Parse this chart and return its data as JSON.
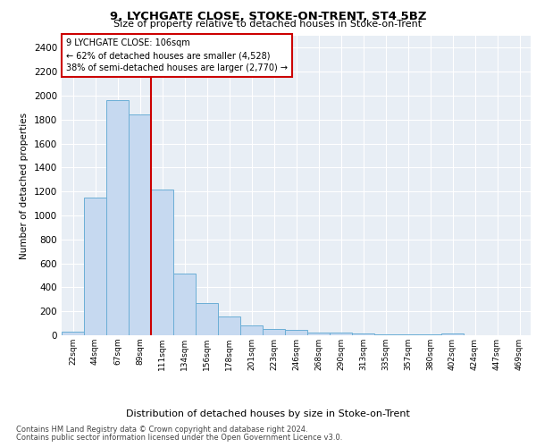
{
  "title1": "9, LYCHGATE CLOSE, STOKE-ON-TRENT, ST4 5BZ",
  "title2": "Size of property relative to detached houses in Stoke-on-Trent",
  "xlabel": "Distribution of detached houses by size in Stoke-on-Trent",
  "ylabel": "Number of detached properties",
  "categories": [
    "22sqm",
    "44sqm",
    "67sqm",
    "89sqm",
    "111sqm",
    "134sqm",
    "156sqm",
    "178sqm",
    "201sqm",
    "223sqm",
    "246sqm",
    "268sqm",
    "290sqm",
    "313sqm",
    "335sqm",
    "357sqm",
    "380sqm",
    "402sqm",
    "424sqm",
    "447sqm",
    "469sqm"
  ],
  "values": [
    30,
    1150,
    1960,
    1840,
    1220,
    515,
    265,
    155,
    85,
    50,
    45,
    20,
    25,
    15,
    5,
    5,
    5,
    18,
    2,
    2,
    2
  ],
  "bar_color": "#c6d9f0",
  "bar_edge_color": "#6baed6",
  "vline_color": "#cc0000",
  "annotation_title": "9 LYCHGATE CLOSE: 106sqm",
  "annotation_line1": "← 62% of detached houses are smaller (4,528)",
  "annotation_line2": "38% of semi-detached houses are larger (2,770) →",
  "annotation_box_color": "#cc0000",
  "ylim": [
    0,
    2500
  ],
  "yticks": [
    0,
    200,
    400,
    600,
    800,
    1000,
    1200,
    1400,
    1600,
    1800,
    2000,
    2200,
    2400
  ],
  "footer1": "Contains HM Land Registry data © Crown copyright and database right 2024.",
  "footer2": "Contains public sector information licensed under the Open Government Licence v3.0.",
  "bg_color": "#e8eef5"
}
